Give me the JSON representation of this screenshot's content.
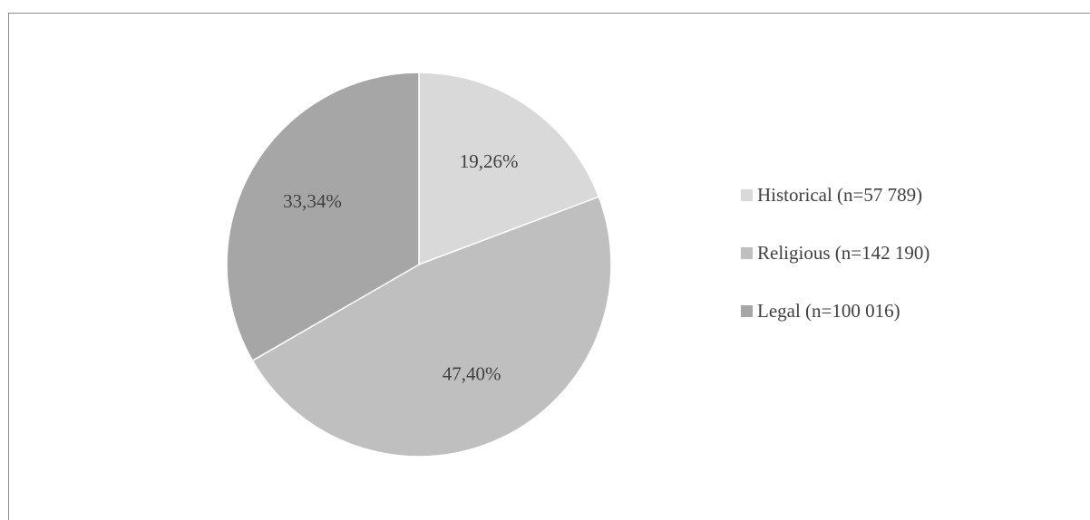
{
  "chart_data": {
    "type": "pie",
    "title": "",
    "categories": [
      "Historical (n=57 789)",
      "Religious (n=142 190)",
      "Legal (n=100 016)"
    ],
    "values": [
      19.26,
      47.4,
      33.34
    ],
    "data_labels": [
      "19,26%",
      "47,40%",
      "33,34%"
    ],
    "colors": [
      "#d9d9d9",
      "#bfbfbf",
      "#a6a6a6"
    ],
    "legend_position": "right",
    "start_angle": "12 o'clock",
    "direction": "clockwise"
  }
}
